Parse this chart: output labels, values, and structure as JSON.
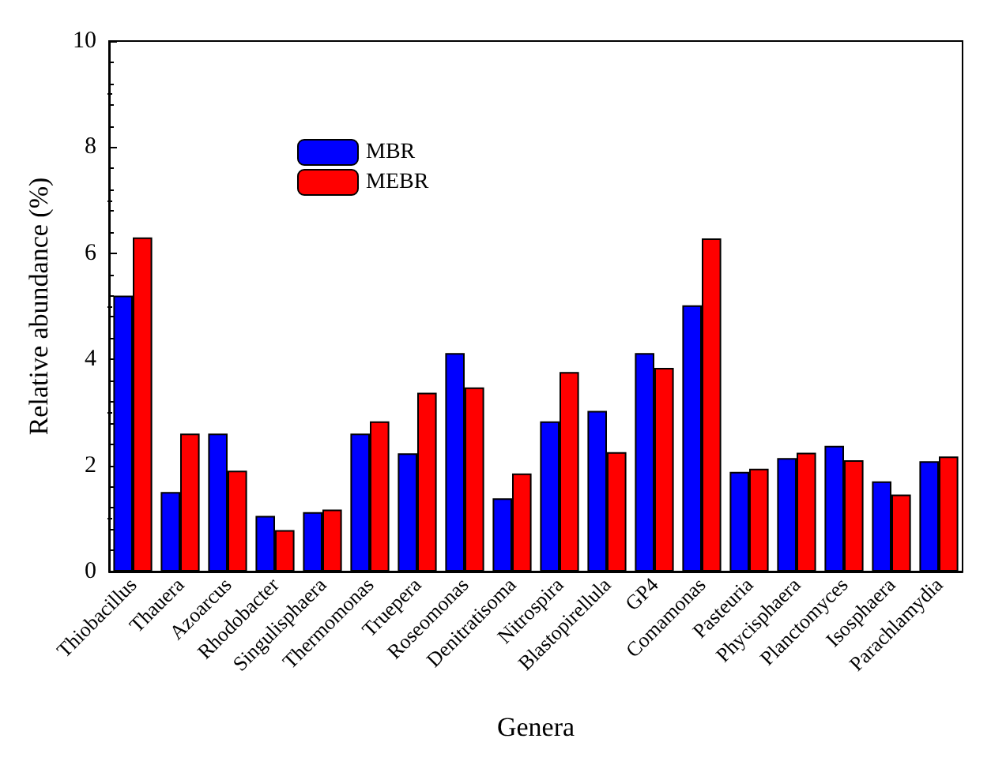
{
  "chart_data": {
    "type": "bar",
    "xlabel": "Genera",
    "ylabel": "Relative abundance (%)",
    "categories": [
      "Thiobacillus",
      "Thauera",
      "Azoarcus",
      "Rhodobacter",
      "Singulisphaera",
      "Thermomonas",
      "Truepera",
      "Roseomonas",
      "Denitratisoma",
      "Nitrospira",
      "Blastopirellula",
      "GP4",
      "Comamonas",
      "Pasteuria",
      "Phycisphaera",
      "Planctomyces",
      "Isosphaera",
      "Parachlamydia"
    ],
    "series": [
      {
        "name": "MBR",
        "color": "#0000ff",
        "values": [
          5.2,
          1.5,
          2.6,
          1.05,
          1.12,
          2.6,
          2.23,
          4.12,
          1.38,
          2.83,
          3.03,
          4.12,
          5.02,
          1.88,
          2.14,
          2.37,
          1.7,
          2.08
        ]
      },
      {
        "name": "MEBR",
        "color": "#ff0000",
        "values": [
          6.3,
          2.6,
          1.9,
          0.78,
          1.17,
          2.83,
          3.37,
          3.47,
          1.85,
          3.76,
          2.25,
          3.84,
          6.28,
          1.94,
          2.24,
          2.1,
          1.45,
          2.17
        ]
      }
    ],
    "ylim": [
      0,
      10
    ],
    "yticks": [
      0,
      2,
      4,
      6,
      8,
      10
    ],
    "grid": false,
    "legend": "top left"
  }
}
